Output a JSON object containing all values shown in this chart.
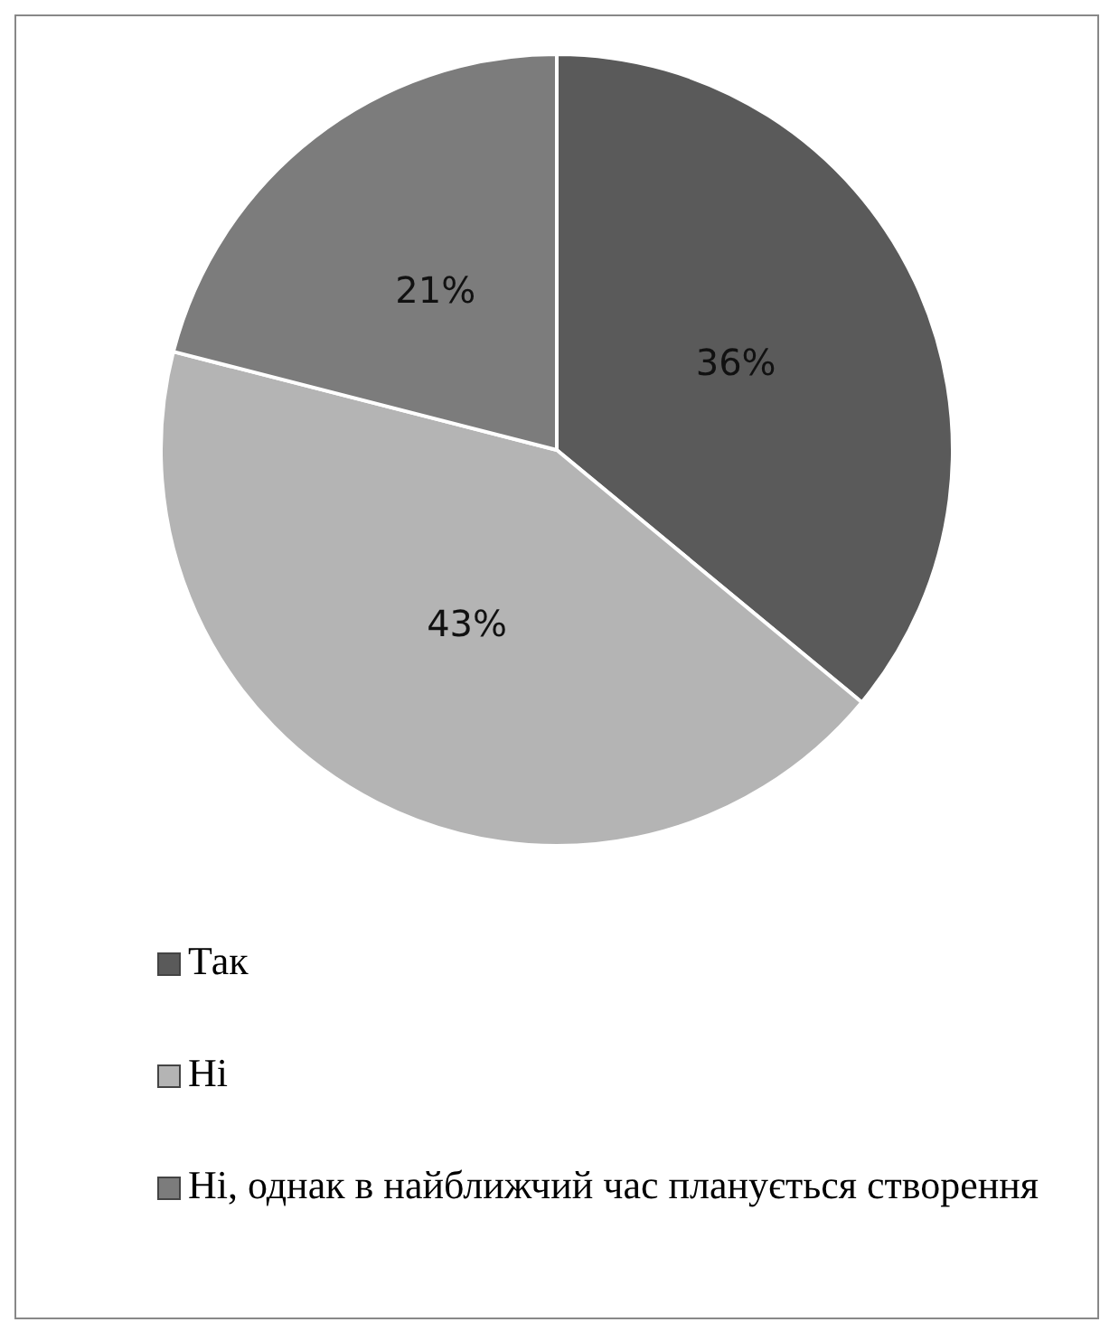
{
  "chart_data": {
    "type": "pie",
    "categories": [
      "Так",
      "Ні",
      "Ні, однак в найближчий час планується створення"
    ],
    "values": [
      36,
      43,
      21
    ],
    "colors": [
      "#5a5a5a",
      "#b4b4b4",
      "#7c7c7c"
    ],
    "value_labels": [
      "36%",
      "43%",
      "21%"
    ],
    "legend": "bottom"
  }
}
